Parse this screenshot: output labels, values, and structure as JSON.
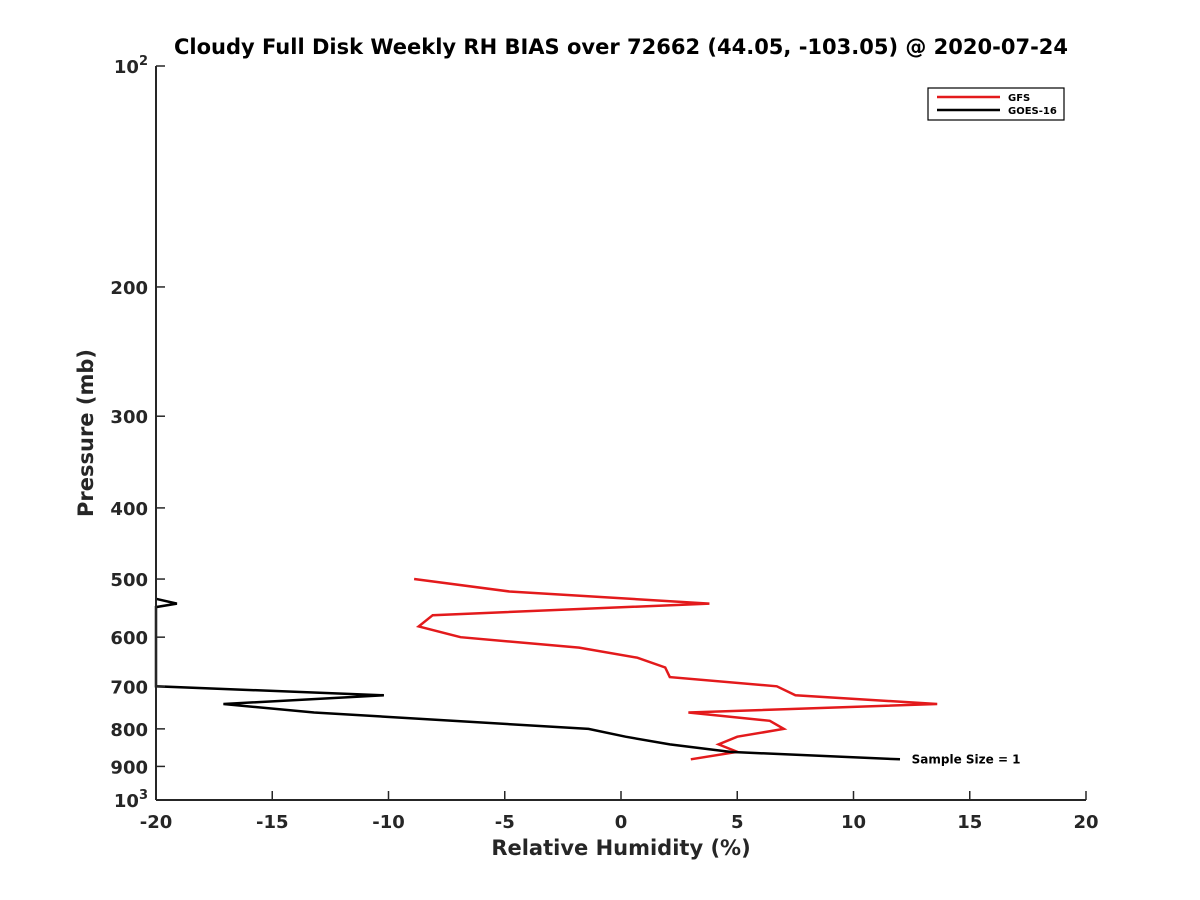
{
  "chart_data": {
    "type": "line",
    "title": "Cloudy Full Disk Weekly RH BIAS over 72662 (44.05, -103.05) @ 2020-07-24",
    "xlabel": "Relative Humidity (%)",
    "ylabel": "Pressure (mb)",
    "xlim": [
      -20,
      20
    ],
    "ylim": [
      100,
      1000
    ],
    "y_scale": "log",
    "y_reversed": true,
    "grid": false,
    "legend_position": "top-right",
    "x_ticks": [
      "-20",
      "-15",
      "-10",
      "-5",
      "0",
      "5",
      "10",
      "15",
      "20"
    ],
    "x_tick_values": [
      -20,
      -15,
      -10,
      -5,
      0,
      5,
      10,
      15,
      20
    ],
    "y_ticks": [
      {
        "value": 100,
        "base": "10",
        "exp": "2"
      },
      {
        "value": 200,
        "label": "200"
      },
      {
        "value": 300,
        "label": "300"
      },
      {
        "value": 400,
        "label": "400"
      },
      {
        "value": 500,
        "label": "500"
      },
      {
        "value": 600,
        "label": "600"
      },
      {
        "value": 700,
        "label": "700"
      },
      {
        "value": 800,
        "label": "800"
      },
      {
        "value": 900,
        "label": "900"
      },
      {
        "value": 1000,
        "base": "10",
        "exp": "3"
      }
    ],
    "series": [
      {
        "name": "GFS",
        "color": "#e31a1c",
        "points": [
          [
            -8.9,
            500
          ],
          [
            -4.8,
            520
          ],
          [
            3.8,
            540
          ],
          [
            -8.1,
            560
          ],
          [
            -8.7,
            580
          ],
          [
            -6.9,
            600
          ],
          [
            -1.8,
            620
          ],
          [
            0.7,
            640
          ],
          [
            1.9,
            660
          ],
          [
            2.1,
            680
          ],
          [
            6.7,
            700
          ],
          [
            7.5,
            720
          ],
          [
            13.6,
            740
          ],
          [
            2.9,
            760
          ],
          [
            6.4,
            780
          ],
          [
            7.0,
            800
          ],
          [
            5.0,
            820
          ],
          [
            4.2,
            840
          ],
          [
            5.0,
            860
          ],
          [
            3.0,
            880
          ]
        ]
      },
      {
        "name": "GOES-16",
        "color": "#000000",
        "points": [
          [
            -20.0,
            532
          ],
          [
            -19.1,
            540
          ],
          [
            -20.0,
            546
          ],
          [
            -20.0,
            700
          ],
          [
            -10.2,
            720
          ],
          [
            -17.1,
            740
          ],
          [
            -13.2,
            760
          ],
          [
            -1.4,
            800
          ],
          [
            0.2,
            820
          ],
          [
            2.1,
            840
          ],
          [
            4.7,
            860
          ],
          [
            12.0,
            880
          ]
        ]
      }
    ],
    "annotations": [
      {
        "text": "Sample Size = 1",
        "x": 12.5,
        "y": 880
      }
    ]
  }
}
